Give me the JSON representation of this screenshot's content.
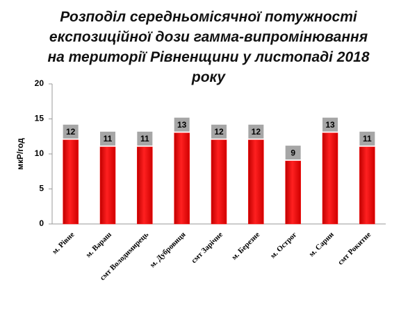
{
  "chart_data": {
    "type": "bar",
    "title": "Розподіл середньомісячної потужності експозиційної дози гамма-випромінювання на території Рівненщини у листопаді 2018 року",
    "y_label": "мкР/год",
    "categories": [
      "м. Рівне",
      "м. Вараш",
      "смт Володимирець",
      "м. Дубровиця",
      "смт Зарічне",
      "м. Березне",
      "м. Острог",
      "м. Сарни",
      "смт Рокитне"
    ],
    "values": [
      12,
      11,
      11,
      13,
      12,
      12,
      9,
      13,
      11
    ],
    "color": "#ff0000",
    "ylim": [
      0,
      20
    ],
    "yticks": [
      0,
      5,
      10,
      15,
      20
    ],
    "grid": false
  }
}
